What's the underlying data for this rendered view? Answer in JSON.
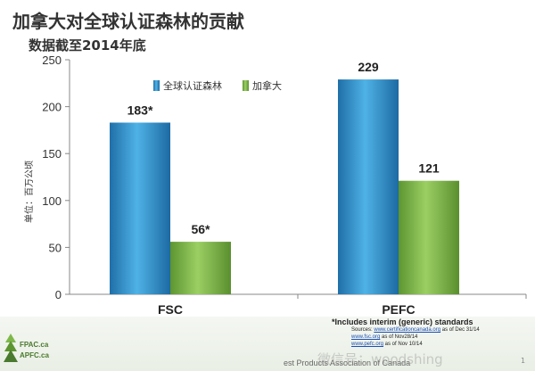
{
  "title": "加拿大对全球认证森林的贡献",
  "subtitle": "数据截至2014年底",
  "chart_data": {
    "type": "bar",
    "categories": [
      "FSC",
      "PEFC"
    ],
    "series": [
      {
        "name": "全球认证森林",
        "values": [
          183,
          229
        ],
        "labels": [
          "183*",
          "229"
        ],
        "color": "#2f8fc9"
      },
      {
        "name": "加拿大",
        "values": [
          56,
          121
        ],
        "labels": [
          "56*",
          "121"
        ],
        "color": "#7fb84a"
      }
    ],
    "ylabel": "单位：百万公顷",
    "ylim": [
      0,
      250
    ],
    "yticks": [
      0,
      50,
      100,
      150,
      200,
      250
    ],
    "legend_position": "top",
    "grid": false
  },
  "footnote": {
    "main": "*Includes interim (generic) standards",
    "sources": [
      {
        "prefix": "Sources: ",
        "link": "www.certificationcanada.org",
        "suffix": " as of Dec 31/14"
      },
      {
        "prefix": "",
        "link": "www.fsc.org",
        "suffix": " as of Nov28/14"
      },
      {
        "prefix": "",
        "link": "www.pefc.org",
        "suffix": " as of Nov 10/14"
      }
    ]
  },
  "logo": {
    "line1": "FPAC.ca",
    "line2": "APFC.ca"
  },
  "association_text": "est Products Association of Canada",
  "watermark": "微信号：woodshing",
  "page_number": "1"
}
